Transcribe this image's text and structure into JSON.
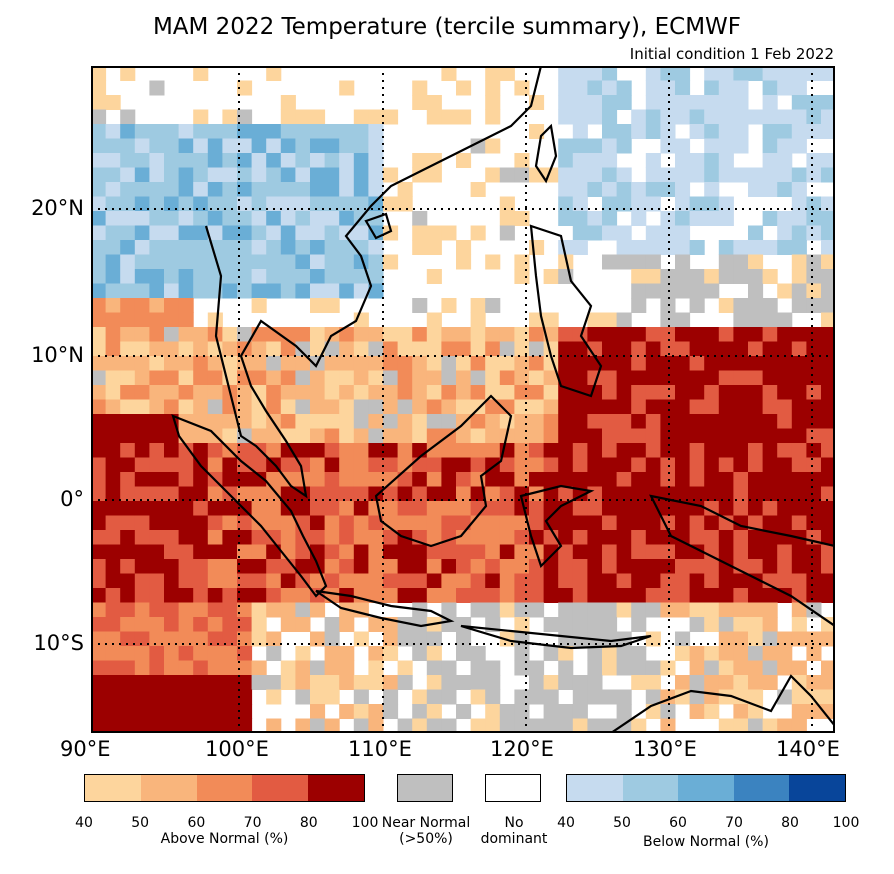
{
  "title": "MAM 2022 Temperature (tercile summary), ECMWF",
  "subtitle": "Initial condition 1 Feb 2022",
  "map": {
    "lon_range": [
      90,
      141
    ],
    "lat_range": [
      -16,
      30
    ],
    "lat_labels": [
      "20°N",
      "10°N",
      "0°",
      "10°S"
    ],
    "lon_labels": [
      "90°E",
      "100°E",
      "110°E",
      "120°E",
      "130°E",
      "140°E"
    ]
  },
  "legend": {
    "above": {
      "caption": "Above Normal (%)",
      "ticks": [
        "40",
        "50",
        "60",
        "70",
        "80",
        "100"
      ],
      "colors": [
        "#fdd59d",
        "#f9b57c",
        "#f28b58",
        "#e25b42",
        "#9c0000"
      ]
    },
    "near_normal": {
      "caption_line1": "Near Normal",
      "caption_line2": "(>50%)",
      "color": "#bfbfbf"
    },
    "no_dominant": {
      "caption_line1": "No",
      "caption_line2": "dominant",
      "color": "#ffffff"
    },
    "below": {
      "caption": "Below Normal (%)",
      "ticks": [
        "40",
        "50",
        "60",
        "70",
        "80",
        "100"
      ],
      "colors": [
        "#c6dbef",
        "#9ecae1",
        "#6aaed6",
        "#3b83c0",
        "#08459a"
      ]
    }
  }
}
